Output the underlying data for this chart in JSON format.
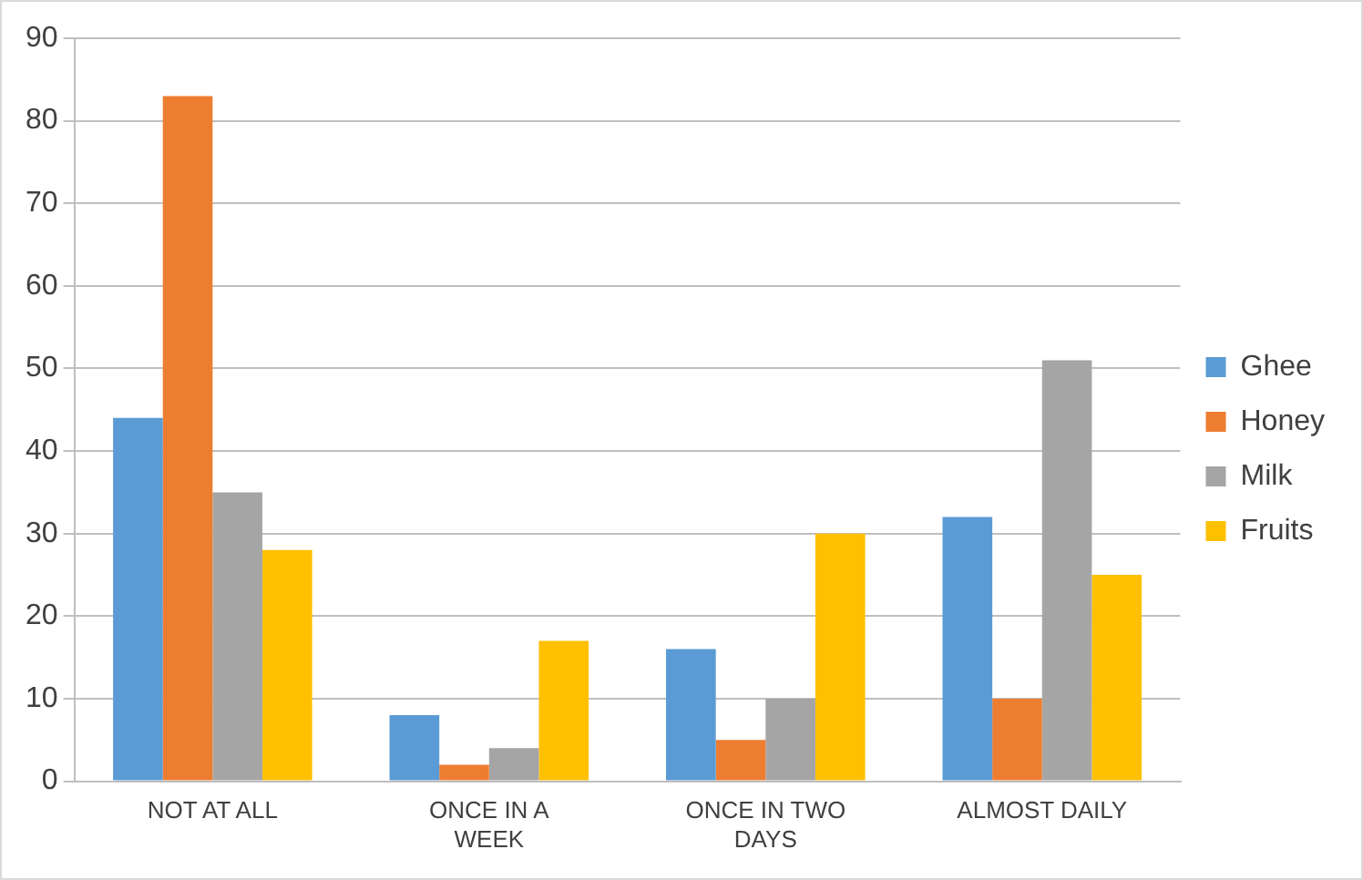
{
  "chart_data": {
    "type": "bar",
    "categories": [
      "NOT AT ALL",
      "ONCE IN A WEEK",
      "ONCE IN TWO DAYS",
      "ALMOST DAILY"
    ],
    "series": [
      {
        "name": "Ghee",
        "color": "#5b9bd5",
        "values": [
          44,
          8,
          16,
          32
        ]
      },
      {
        "name": "Honey",
        "color": "#ed7d31",
        "values": [
          83,
          2,
          5,
          10
        ]
      },
      {
        "name": "Milk",
        "color": "#a5a5a5",
        "values": [
          35,
          4,
          10,
          51
        ]
      },
      {
        "name": "Fruits",
        "color": "#ffc000",
        "values": [
          28,
          17,
          30,
          25
        ]
      }
    ],
    "ylim": [
      0,
      90
    ],
    "yticks": [
      0,
      10,
      20,
      30,
      40,
      50,
      60,
      70,
      80,
      90
    ],
    "grid": "y",
    "legend": "right"
  }
}
